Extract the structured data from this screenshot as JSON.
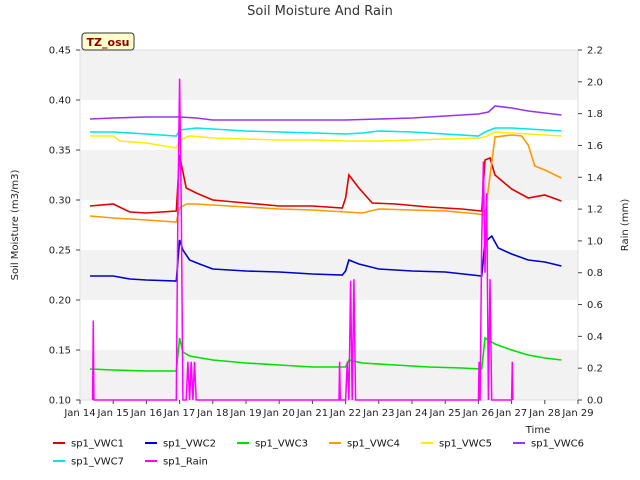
{
  "chart_data": {
    "type": "line",
    "title": "Soil Moisture And Rain",
    "badge": "TZ_osu",
    "xlabel": "Time",
    "ylabel_left": "Soil Moisture (m3/m3)",
    "ylabel_right": "Rain (mm)",
    "ylim_left": [
      0.1,
      0.45
    ],
    "ylim_right": [
      0.0,
      2.2
    ],
    "yticks_left": [
      "0.10",
      "0.15",
      "0.20",
      "0.25",
      "0.30",
      "0.35",
      "0.40",
      "0.45"
    ],
    "yticks_right": [
      "0.0",
      "0.2",
      "0.4",
      "0.6",
      "0.8",
      "1.0",
      "1.2",
      "1.4",
      "1.6",
      "1.8",
      "2.0",
      "2.2"
    ],
    "xlim": [
      14,
      29
    ],
    "xticks": [
      "Jan 14",
      "Jan 15",
      "Jan 16",
      "Jan 17",
      "Jan 18",
      "Jan 19",
      "Jan 20",
      "Jan 21",
      "Jan 22",
      "Jan 23",
      "Jan 24",
      "Jan 25",
      "Jan 26",
      "Jan 27",
      "Jan 28",
      "Jan 29"
    ],
    "background_bands": "alternating light gray horizontal bands",
    "legend_position": "bottom",
    "series": [
      {
        "name": "sp1_VWC1",
        "axis": "left",
        "color": "#e00000",
        "x": [
          14.3,
          15.0,
          15.5,
          16.0,
          16.9,
          17.0,
          17.05,
          17.2,
          17.5,
          18.0,
          19.0,
          20.0,
          21.0,
          21.9,
          22.0,
          22.1,
          22.4,
          22.8,
          23.5,
          24.5,
          25.5,
          26.1,
          26.2,
          26.35,
          26.5,
          27.0,
          27.5,
          28.0,
          28.5
        ],
        "y": [
          0.294,
          0.296,
          0.288,
          0.287,
          0.289,
          0.345,
          0.336,
          0.312,
          0.307,
          0.3,
          0.297,
          0.294,
          0.294,
          0.292,
          0.302,
          0.325,
          0.312,
          0.297,
          0.296,
          0.293,
          0.291,
          0.289,
          0.34,
          0.342,
          0.325,
          0.311,
          0.302,
          0.305,
          0.299
        ]
      },
      {
        "name": "sp1_VWC2",
        "axis": "left",
        "color": "#0000cc",
        "x": [
          14.3,
          15.0,
          15.5,
          16.0,
          16.9,
          17.0,
          17.1,
          17.3,
          17.6,
          18.0,
          19.0,
          20.0,
          21.0,
          21.9,
          22.0,
          22.1,
          22.4,
          23.0,
          24.0,
          25.0,
          26.1,
          26.2,
          26.4,
          26.6,
          27.0,
          27.5,
          28.0,
          28.5
        ],
        "y": [
          0.224,
          0.224,
          0.221,
          0.22,
          0.219,
          0.26,
          0.25,
          0.24,
          0.236,
          0.231,
          0.229,
          0.228,
          0.226,
          0.225,
          0.229,
          0.24,
          0.236,
          0.231,
          0.229,
          0.228,
          0.224,
          0.258,
          0.264,
          0.252,
          0.246,
          0.24,
          0.238,
          0.234
        ]
      },
      {
        "name": "sp1_VWC3",
        "axis": "left",
        "color": "#00e000",
        "x": [
          14.3,
          15.0,
          16.0,
          16.9,
          17.0,
          17.1,
          17.3,
          18.0,
          19.0,
          20.0,
          21.0,
          22.0,
          22.1,
          22.5,
          23.5,
          24.5,
          25.5,
          26.1,
          26.2,
          26.5,
          27.0,
          27.5,
          28.0,
          28.5
        ],
        "y": [
          0.131,
          0.13,
          0.129,
          0.129,
          0.162,
          0.148,
          0.144,
          0.14,
          0.137,
          0.135,
          0.133,
          0.133,
          0.14,
          0.137,
          0.135,
          0.133,
          0.132,
          0.131,
          0.162,
          0.156,
          0.15,
          0.145,
          0.142,
          0.14
        ]
      },
      {
        "name": "sp1_VWC4",
        "axis": "left",
        "color": "#ff9900",
        "x": [
          14.3,
          15.0,
          16.0,
          16.9,
          17.0,
          17.2,
          17.5,
          18.0,
          19.0,
          20.0,
          21.0,
          22.0,
          22.5,
          23.0,
          24.0,
          25.0,
          26.0,
          26.2,
          26.5,
          27.0,
          27.3,
          27.5,
          27.7,
          28.0,
          28.5
        ],
        "y": [
          0.284,
          0.282,
          0.28,
          0.278,
          0.292,
          0.296,
          0.296,
          0.295,
          0.293,
          0.291,
          0.29,
          0.288,
          0.287,
          0.291,
          0.29,
          0.289,
          0.286,
          0.285,
          0.363,
          0.365,
          0.364,
          0.355,
          0.334,
          0.33,
          0.322
        ]
      },
      {
        "name": "sp1_VWC5",
        "axis": "left",
        "color": "#ffee00",
        "x": [
          14.3,
          15.0,
          15.2,
          16.0,
          16.9,
          17.0,
          17.3,
          18.0,
          19.0,
          20.0,
          21.0,
          22.0,
          23.0,
          24.0,
          25.0,
          26.0,
          26.2,
          26.5,
          27.0,
          27.5,
          28.0,
          28.5
        ],
        "y": [
          0.364,
          0.364,
          0.359,
          0.357,
          0.352,
          0.36,
          0.364,
          0.362,
          0.361,
          0.36,
          0.36,
          0.359,
          0.359,
          0.36,
          0.361,
          0.362,
          0.363,
          0.368,
          0.367,
          0.366,
          0.365,
          0.364
        ]
      },
      {
        "name": "sp1_VWC6",
        "axis": "left",
        "color": "#9933ee",
        "x": [
          14.3,
          15.0,
          16.0,
          17.0,
          17.5,
          18.0,
          19.0,
          20.0,
          21.0,
          22.0,
          23.0,
          24.0,
          25.0,
          26.0,
          26.3,
          26.5,
          27.0,
          27.5,
          28.0,
          28.5
        ],
        "y": [
          0.381,
          0.382,
          0.383,
          0.383,
          0.382,
          0.38,
          0.38,
          0.38,
          0.38,
          0.38,
          0.381,
          0.382,
          0.384,
          0.386,
          0.388,
          0.394,
          0.392,
          0.389,
          0.387,
          0.385
        ]
      },
      {
        "name": "sp1_VWC7",
        "axis": "left",
        "color": "#00e5ee",
        "x": [
          14.3,
          15.0,
          16.0,
          16.9,
          17.0,
          17.5,
          18.0,
          19.0,
          20.0,
          21.0,
          22.0,
          22.5,
          23.0,
          24.0,
          25.0,
          26.0,
          26.2,
          26.5,
          27.0,
          27.5,
          28.0,
          28.5
        ],
        "y": [
          0.368,
          0.368,
          0.366,
          0.364,
          0.37,
          0.372,
          0.371,
          0.369,
          0.368,
          0.367,
          0.366,
          0.367,
          0.369,
          0.368,
          0.366,
          0.364,
          0.368,
          0.372,
          0.372,
          0.371,
          0.37,
          0.369
        ]
      },
      {
        "name": "sp1_Rain",
        "axis": "right",
        "color": "#ff00ff",
        "x": [
          14.38,
          14.4,
          14.42,
          16.9,
          16.95,
          17.0,
          17.05,
          17.1,
          17.2,
          17.25,
          17.3,
          17.35,
          17.4,
          17.45,
          17.5,
          17.55,
          21.8,
          21.82,
          21.84,
          22.0,
          22.05,
          22.1,
          22.15,
          22.2,
          22.25,
          22.3,
          22.35,
          26.0,
          26.02,
          26.04,
          26.05,
          26.1,
          26.15,
          26.2,
          26.25,
          26.3,
          26.35,
          26.4,
          26.45,
          26.5,
          27.0,
          27.02,
          27.04
        ],
        "y": [
          0.0,
          0.5,
          0.0,
          0.0,
          1.2,
          2.02,
          1.2,
          0.0,
          0.0,
          0.24,
          0.0,
          0.24,
          0.0,
          0.24,
          0.0,
          0.0,
          0.0,
          0.24,
          0.0,
          0.0,
          0.24,
          0.0,
          0.75,
          0.0,
          0.76,
          0.0,
          0.0,
          0.0,
          0.24,
          0.0,
          0.0,
          1.0,
          1.5,
          0.8,
          1.3,
          0.0,
          0.76,
          0.0,
          0.0,
          0.0,
          0.0,
          0.24,
          0.0
        ]
      }
    ]
  }
}
